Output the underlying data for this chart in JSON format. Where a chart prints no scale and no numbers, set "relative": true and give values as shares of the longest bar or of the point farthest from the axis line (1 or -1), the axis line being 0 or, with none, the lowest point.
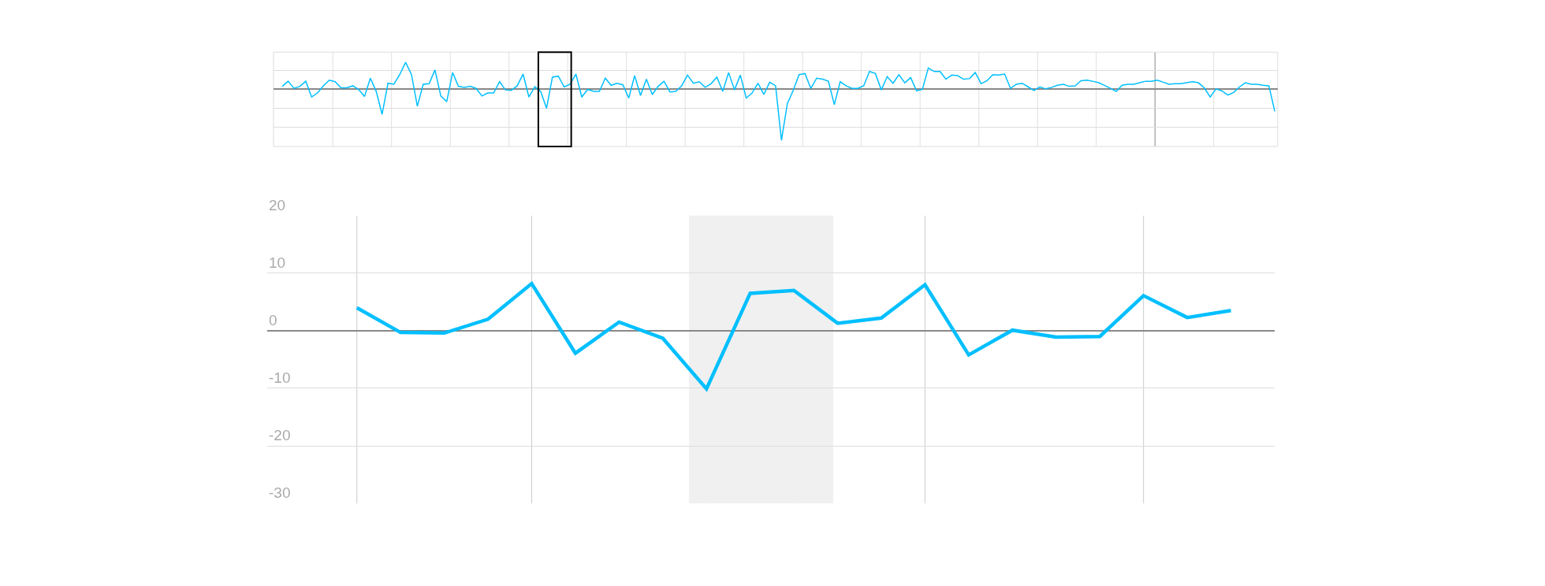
{
  "chart_data": [
    {
      "type": "line",
      "relative": true,
      "tick_labels": false,
      "grid": true,
      "marker": "none",
      "categories": [
        null,
        null,
        null,
        null,
        null,
        null,
        null,
        null,
        null,
        null,
        null,
        null,
        null,
        null,
        null,
        null,
        null,
        null,
        null,
        null,
        null,
        null,
        null,
        null,
        null,
        null,
        null,
        null,
        null,
        null,
        null,
        null,
        null,
        null,
        null,
        null,
        null,
        null,
        null,
        null,
        null,
        null,
        null,
        null,
        null,
        null,
        null,
        null,
        null,
        null,
        null,
        null,
        null,
        null,
        null,
        null,
        null,
        null,
        null,
        null,
        null,
        null,
        null,
        null,
        null,
        null,
        null,
        null,
        null,
        null,
        null,
        null,
        null,
        null,
        null,
        null,
        null,
        null,
        null,
        null,
        null,
        null,
        null,
        null,
        null,
        null,
        null,
        null,
        null,
        null,
        null,
        null,
        null,
        null,
        null,
        null,
        null,
        null,
        null,
        null,
        null,
        null,
        null,
        null,
        null,
        null,
        null,
        null,
        null,
        null,
        null,
        null,
        null,
        null,
        null,
        null,
        null,
        null,
        null,
        null,
        null,
        null,
        null,
        null,
        null,
        null,
        null,
        null,
        null,
        null,
        null,
        null,
        null,
        null,
        null,
        null,
        null,
        null,
        null,
        null,
        null,
        null,
        null,
        null,
        null,
        null,
        null,
        null,
        null,
        null,
        null,
        null,
        null,
        null,
        null,
        null,
        null,
        null,
        null,
        null,
        null,
        null,
        null,
        null,
        null,
        null,
        null,
        null,
        null,
        null
      ],
      "series": [
        {
          "color": "#00bfff",
          "values": [
            0.06,
            0.16,
            0.02,
            0.06,
            0.16,
            -0.15,
            -0.07,
            0.07,
            0.18,
            0.15,
            0.03,
            0.03,
            0.07,
            0,
            -0.14,
            0.22,
            -0.04,
            -0.49,
            0.12,
            0.1,
            0.29,
            0.53,
            0.29,
            -0.33,
            0.1,
            0.11,
            0.38,
            -0.13,
            -0.24,
            0.33,
            0.06,
            0.04,
            0.06,
            0.02,
            -0.13,
            -0.07,
            -0.07,
            0.15,
            -0.01,
            -0.02,
            0.07,
            0.3,
            -0.15,
            0.05,
            -0.04,
            -0.37,
            0.24,
            0.26,
            0.05,
            0.1,
            0.3,
            -0.15,
            0,
            -0.04,
            -0.04,
            0.22,
            0.08,
            0.12,
            0.09,
            -0.17,
            0.27,
            -0.12,
            0.2,
            -0.1,
            0.06,
            0.16,
            -0.05,
            -0.04,
            0.07,
            0.28,
            0.12,
            0.15,
            0.04,
            0.11,
            0.24,
            -0.04,
            0.33,
            -0.01,
            0.28,
            -0.17,
            -0.07,
            0.12,
            -0.1,
            0.14,
            0.07,
            -1,
            -0.28,
            -0.02,
            0.29,
            0.31,
            0.02,
            0.22,
            0.2,
            0.16,
            -0.3,
            0.15,
            0.07,
            0.02,
            0.02,
            0.07,
            0.35,
            0.31,
            -0.01,
            0.25,
            0.12,
            0.29,
            0.13,
            0.23,
            -0.03,
            0,
            0.42,
            0.35,
            0.35,
            0.2,
            0.28,
            0.27,
            0.2,
            0.21,
            0.33,
            0.11,
            0.17,
            0.29,
            0.28,
            0.3,
            0.02,
            0.1,
            0.12,
            0.05,
            -0.02,
            0.05,
            0.01,
            0.04,
            0.08,
            0.1,
            0.06,
            0.07,
            0.17,
            0.18,
            0.16,
            0.13,
            0.08,
            0.02,
            -0.04,
            0.08,
            0.1,
            0.1,
            0.13,
            0.16,
            0.16,
            0.18,
            0.14,
            0.1,
            0.11,
            0.11,
            0.13,
            0.15,
            0.13,
            0.03,
            -0.15,
            0.01,
            -0.03,
            -0.11,
            -0.06,
            0.05,
            0.13,
            0.1,
            0.1,
            0.08,
            0.07,
            -0.43
          ]
        }
      ]
    },
    {
      "type": "line",
      "grid": true,
      "marker": "none",
      "tick_labels": "y",
      "categories": [
        null,
        null,
        null,
        null,
        null,
        null,
        null,
        null,
        null,
        null,
        null,
        null,
        null,
        null,
        null,
        null,
        null,
        null,
        null,
        null,
        null
      ],
      "series": [
        {
          "color": "#00bfff",
          "values": [
            4.0,
            -0.3,
            -0.4,
            2.0,
            8.2,
            -3.9,
            1.5,
            -1.3,
            -10.1,
            6.5,
            7.0,
            1.3,
            2.2,
            8.0,
            -4.2,
            0.1,
            -1.1,
            -1.0,
            6.1,
            2.3,
            3.5
          ]
        }
      ],
      "ylim": [
        -30,
        20
      ],
      "yticks": [
        -30,
        -20,
        -10,
        0,
        10,
        20
      ]
    }
  ]
}
